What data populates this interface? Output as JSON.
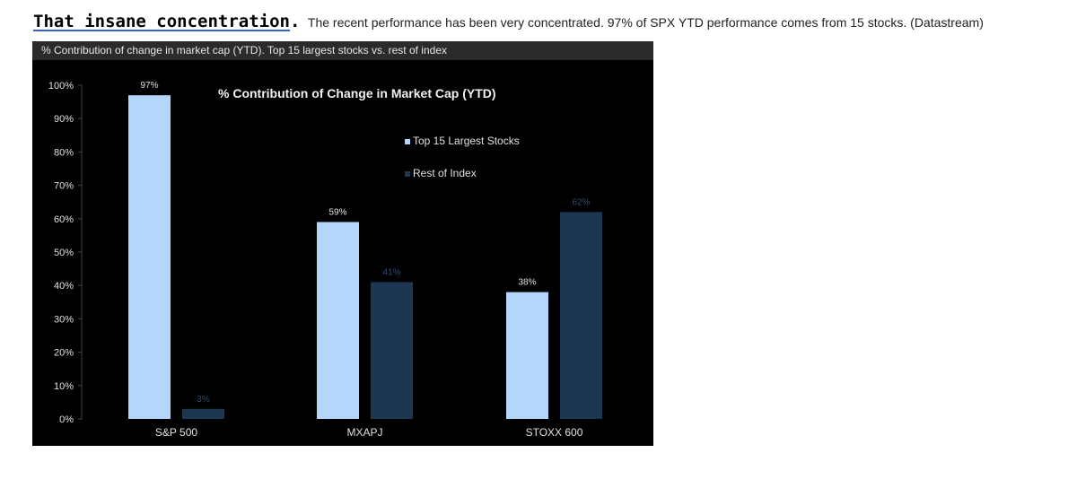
{
  "headline": {
    "bold": "That insane concentration",
    "dot": ".",
    "description": "The recent performance has been very concentrated. 97% of SPX YTD performance comes from 15 stocks. (Datastream)"
  },
  "panel": {
    "header": "% Contribution of change in market cap (YTD). Top 15 largest stocks vs. rest of index"
  },
  "colors": {
    "top15": "#b4d6fb",
    "rest": "#1d3651",
    "background": "#000000",
    "text": "#e0e0e0",
    "rest_label": "#2f4d6e"
  },
  "chart_data": {
    "type": "bar",
    "title": "% Contribution of Change in Market Cap (YTD)",
    "categories": [
      "S&P 500",
      "MXAPJ",
      "STOXX 600"
    ],
    "series": [
      {
        "name": "Top 15 Largest Stocks",
        "values": [
          97,
          59,
          38
        ],
        "labels": [
          "97%",
          "59%",
          "38%"
        ]
      },
      {
        "name": "Rest of Index",
        "values": [
          3,
          41,
          62
        ],
        "labels": [
          "3%",
          "41%",
          "62%"
        ]
      }
    ],
    "ylim": [
      0,
      100
    ],
    "yticks": [
      0,
      10,
      20,
      30,
      40,
      50,
      60,
      70,
      80,
      90,
      100
    ],
    "ytick_labels": [
      "0%",
      "10%",
      "20%",
      "30%",
      "40%",
      "50%",
      "60%",
      "70%",
      "80%",
      "90%",
      "100%"
    ],
    "xlabel": "",
    "ylabel": "",
    "grid": false,
    "legend_position": "top-right"
  }
}
